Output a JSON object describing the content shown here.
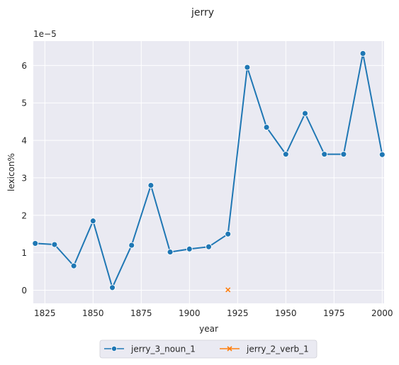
{
  "chart_data": {
    "type": "line",
    "title": "jerry",
    "xlabel": "year",
    "ylabel": "lexicon%",
    "y_scale_label": "1e−5",
    "xlim": [
      1819,
      2001
    ],
    "ylim": [
      -0.35,
      6.65
    ],
    "x_ticks": [
      1825,
      1850,
      1875,
      1900,
      1925,
      1950,
      1975,
      2000
    ],
    "y_ticks": [
      0,
      1,
      2,
      3,
      4,
      5,
      6
    ],
    "grid": true,
    "background": "#eaeaf2",
    "legend_position": "bottom-center",
    "series": [
      {
        "name": "jerry_3_noun_1",
        "color": "#1f77b4",
        "marker": "circle",
        "x": [
          1820,
          1830,
          1840,
          1850,
          1860,
          1870,
          1880,
          1890,
          1900,
          1910,
          1920,
          1930,
          1940,
          1950,
          1960,
          1970,
          1980,
          1990,
          2000
        ],
        "y": [
          1.25,
          1.22,
          0.65,
          1.85,
          0.07,
          1.2,
          2.8,
          1.02,
          1.1,
          1.16,
          1.5,
          5.95,
          4.35,
          3.63,
          4.72,
          3.63,
          3.63,
          6.32,
          3.62
        ]
      },
      {
        "name": "jerry_2_verb_1",
        "color": "#ff7f0e",
        "marker": "x",
        "x": [
          1920
        ],
        "y": [
          0.01
        ]
      }
    ]
  }
}
